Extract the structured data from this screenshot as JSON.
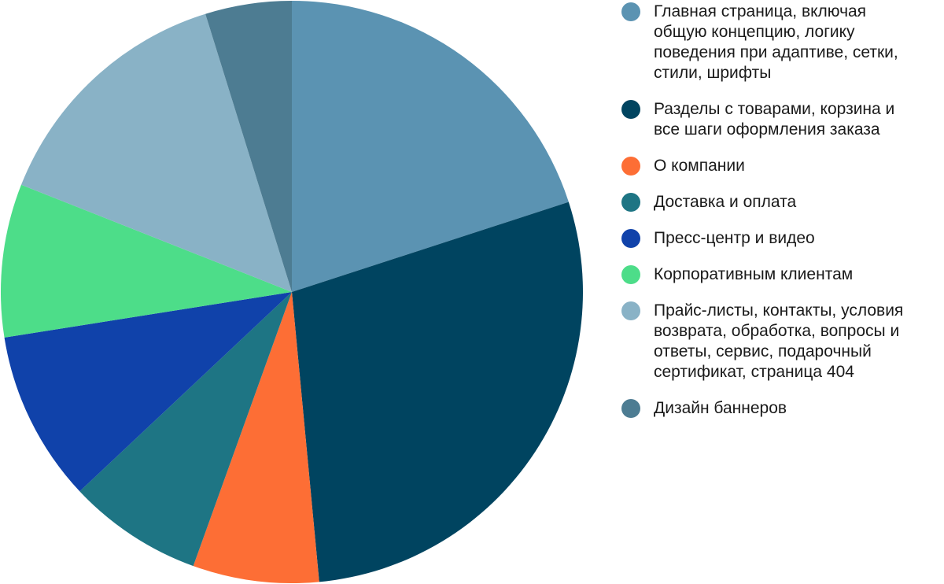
{
  "chart_data": {
    "type": "pie",
    "start": "12 o'clock",
    "direction": "clockwise",
    "legend_position": "right",
    "slices": [
      {
        "label": "Главная страница, включая\nобщую концепцию, логику\nповедения при адаптиве, сетки,\nстили, шрифты",
        "value": 20.0,
        "color": "#5b93b2"
      },
      {
        "label": "Разделы с товарами, корзина и\nвсе шаги оформления заказа",
        "value": 28.5,
        "color": "#004460"
      },
      {
        "label": "О компании",
        "value": 7.0,
        "color": "#fd6e35"
      },
      {
        "label": "Доставка и оплата",
        "value": 7.5,
        "color": "#1e7584"
      },
      {
        "label": "Пресс-центр и видео",
        "value": 9.5,
        "color": "#1042aa"
      },
      {
        "label": "Корпоративным клиентам",
        "value": 8.5,
        "color": "#4ddd89"
      },
      {
        "label": "Прайс-листы, контакты, условия\nвозврата, обработка, вопросы и\nответы, сервис, подарочный\nсертификат, страница 404",
        "value": 14.2,
        "color": "#89b2c6"
      },
      {
        "label": "Дизайн баннеров",
        "value": 4.8,
        "color": "#4d7c92"
      }
    ]
  }
}
